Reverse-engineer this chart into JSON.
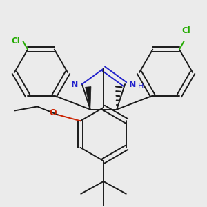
{
  "background_color": "#ebebeb",
  "bond_color": "#1a1a1a",
  "nitrogen_color": "#2222cc",
  "oxygen_color": "#cc2200",
  "chlorine_color": "#22aa00",
  "figsize": [
    3.0,
    3.0
  ],
  "dpi": 100,
  "xlim": [
    -2.5,
    2.5
  ],
  "ylim": [
    -2.8,
    2.2
  ]
}
